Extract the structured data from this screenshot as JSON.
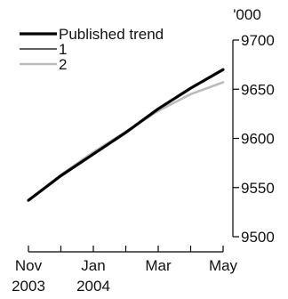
{
  "chart_data": {
    "type": "line",
    "y_unit_label": "'000",
    "ylim": [
      9500,
      9700
    ],
    "y_ticks": [
      9500,
      9550,
      9600,
      9650,
      9700
    ],
    "y_tick_labels": [
      "9500",
      "9550",
      "9600",
      "9650",
      "9700"
    ],
    "y_axis_position": "right",
    "x_ticks": [
      {
        "month": "2003-11",
        "label": "Nov",
        "year": "2003"
      },
      {
        "month": "2003-12",
        "label": "",
        "year": ""
      },
      {
        "month": "2004-01",
        "label": "Jan",
        "year": "2004"
      },
      {
        "month": "2004-02",
        "label": "",
        "year": ""
      },
      {
        "month": "2004-03",
        "label": "Mar",
        "year": ""
      },
      {
        "month": "2004-04",
        "label": "",
        "year": ""
      },
      {
        "month": "2004-05",
        "label": "May",
        "year": ""
      }
    ],
    "grid": false,
    "legend_position": "top-left",
    "series": [
      {
        "name": "Published trend",
        "color": "#000000",
        "line_weight": "heavy",
        "x": [
          "2003-11",
          "2003-12",
          "2004-01",
          "2004-02",
          "2004-03",
          "2004-04",
          "2004-05"
        ],
        "values": [
          9537,
          9562,
          9584,
          9606,
          9630,
          9651,
          9670
        ]
      },
      {
        "name": "1",
        "color": "#000000",
        "line_weight": "thin",
        "x": [
          "2003-11",
          "2003-12",
          "2004-01",
          "2004-02",
          "2004-03",
          "2004-04",
          "2004-05"
        ],
        "values": [
          9537,
          9562,
          9584,
          9606,
          9630,
          9651,
          9670
        ]
      },
      {
        "name": "2",
        "color": "#bbbbbb",
        "line_weight": "medium",
        "x": [
          "2003-11",
          "2003-12",
          "2004-01",
          "2004-02",
          "2004-03",
          "2004-04",
          "2004-05"
        ],
        "values": [
          9537,
          9563,
          9586,
          9607,
          9628,
          9645,
          9657
        ]
      }
    ]
  }
}
